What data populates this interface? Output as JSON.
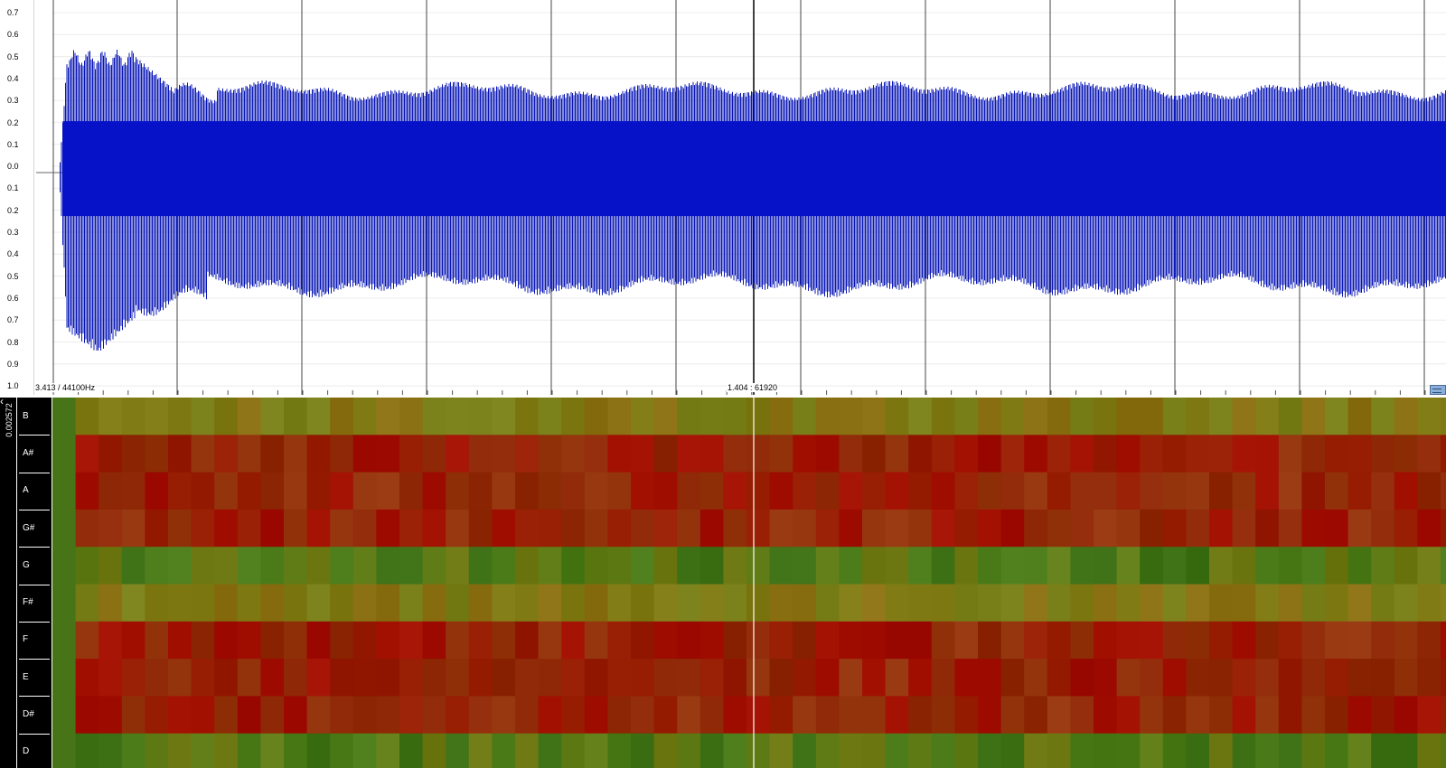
{
  "waveform": {
    "amplitude_labels": [
      "0.7",
      "0.6",
      "0.5",
      "0.4",
      "0.3",
      "0.2",
      "0.1",
      "0.0",
      "0.1",
      "0.2",
      "0.3",
      "0.4",
      "0.5",
      "0.6",
      "0.7",
      "0.8",
      "0.9",
      "1.0"
    ],
    "hud_left": "3.413 / 44100Hz",
    "hud_mid": "1.404 : 61920",
    "wave_color": "#0a17b6",
    "wave_core_color": "#0612c8",
    "grid_color": "#000000"
  },
  "chromagram": {
    "scale_label": "0.002572",
    "collapse_icon": "chevron-left-icon",
    "keys": [
      "B",
      "A#",
      "A",
      "G#",
      "G",
      "F#",
      "F",
      "E",
      "D#",
      "D"
    ],
    "green_color": "#4a7a18",
    "yellow_color": "#807a14",
    "red_color": "#9a1800"
  }
}
